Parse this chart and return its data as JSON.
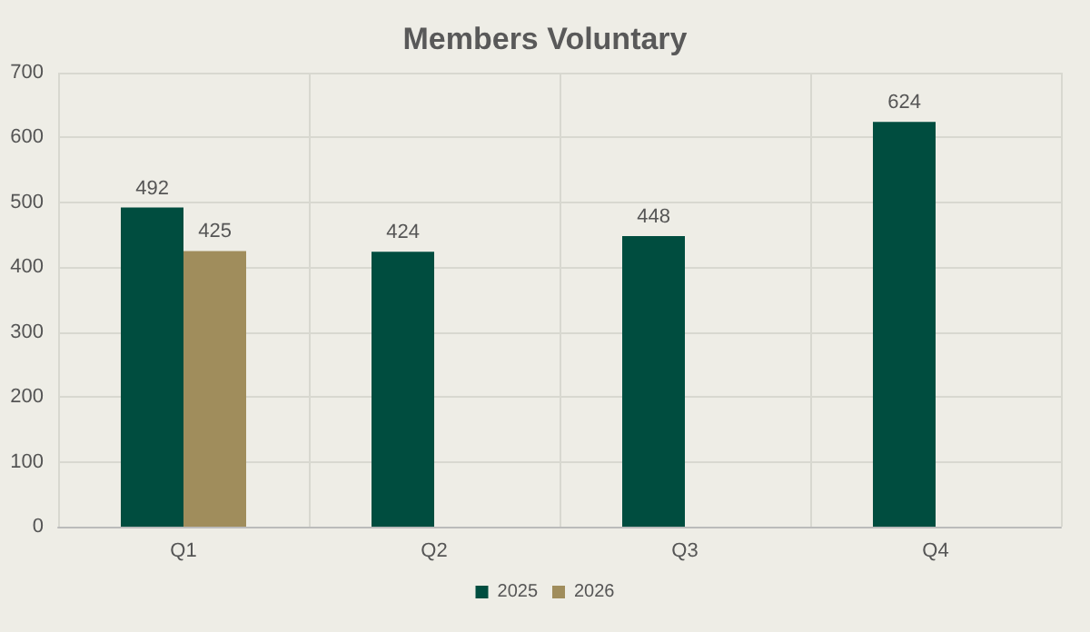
{
  "chart_data": {
    "type": "bar",
    "title": "Members Voluntary",
    "categories": [
      "Q1",
      "Q2",
      "Q3",
      "Q4"
    ],
    "series": [
      {
        "name": "2025",
        "color": "#004d3f",
        "values": [
          492,
          424,
          448,
          624
        ]
      },
      {
        "name": "2026",
        "color": "#a08d5c",
        "values": [
          425,
          null,
          null,
          null
        ]
      }
    ],
    "ylim": [
      0,
      700
    ],
    "yticks": [
      0,
      100,
      200,
      300,
      400,
      500,
      600,
      700
    ],
    "grid": true,
    "legend": "bottom",
    "data_labels": true
  }
}
